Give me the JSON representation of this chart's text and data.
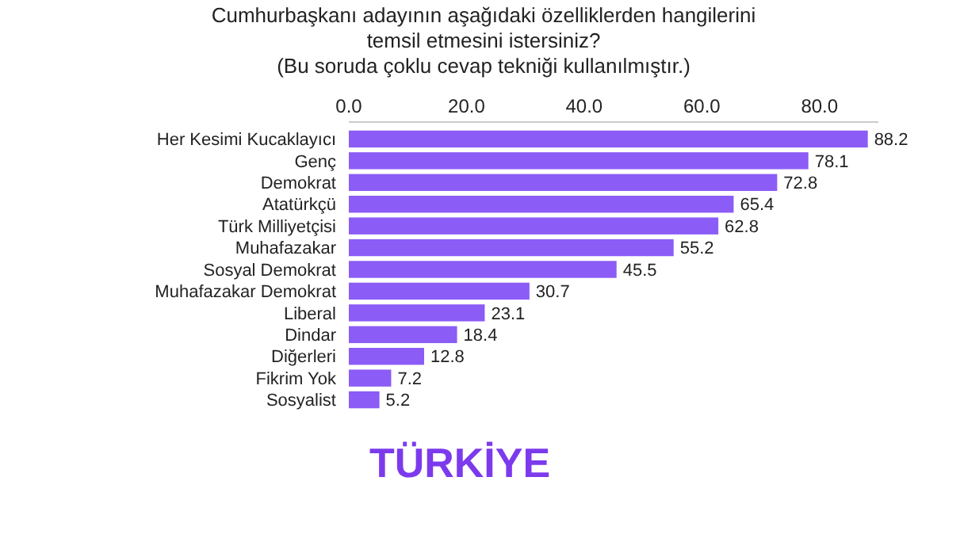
{
  "chart_data": {
    "type": "bar",
    "orientation": "horizontal",
    "title": "Cumhurbaşkanı adayının aşağıdaki özelliklerden hangilerini temsil etmesini istersiniz?",
    "subtitle": "(Bu soruda çoklu cevap tekniği kullanılmıştır.)",
    "categories": [
      "Her Kesimi Kucaklayıcı",
      "Genç",
      "Demokrat",
      "Atatürkçü",
      "Türk Milliyetçisi",
      "Muhafazakar",
      "Sosyal Demokrat",
      "Muhafazakar Demokrat",
      "Liberal",
      "Dindar",
      "Diğerleri",
      "Fikrim Yok",
      "Sosyalist"
    ],
    "values": [
      88.2,
      78.1,
      72.8,
      65.4,
      62.8,
      55.2,
      45.5,
      30.7,
      23.1,
      18.4,
      12.8,
      7.2,
      5.2
    ],
    "color": "#8b5cf6",
    "xlim": [
      0,
      90
    ],
    "xticks": [
      {
        "value": 0,
        "label": "0.0"
      },
      {
        "value": 20,
        "label": "20.0"
      },
      {
        "value": 40,
        "label": "40.0"
      },
      {
        "value": 60,
        "label": "60.0"
      },
      {
        "value": 80,
        "label": "80.0"
      }
    ],
    "data_labels": true,
    "grid": false,
    "annotations": [
      "TÜRKİYE"
    ]
  }
}
